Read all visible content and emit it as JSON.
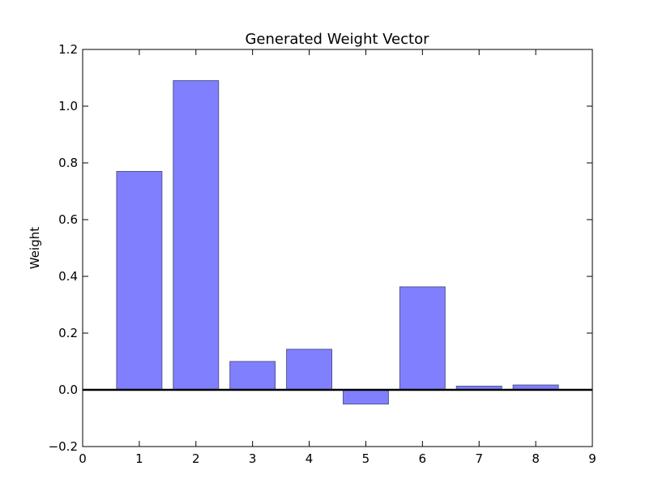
{
  "chart_data": {
    "type": "bar",
    "title": "Generated Weight Vector",
    "xlabel": "",
    "ylabel": "Weight",
    "x": [
      1,
      2,
      3,
      4,
      5,
      6,
      7,
      8
    ],
    "values": [
      0.77,
      1.09,
      0.1,
      0.143,
      -0.05,
      0.363,
      0.013,
      0.017
    ],
    "xlim": [
      0,
      9
    ],
    "ylim": [
      -0.2,
      1.2
    ],
    "xticks": [
      "0",
      "1",
      "2",
      "3",
      "4",
      "5",
      "6",
      "7",
      "8",
      "9"
    ],
    "yticks": [
      "−0.2",
      "0.0",
      "0.2",
      "0.4",
      "0.6",
      "0.8",
      "1.0",
      "1.2"
    ],
    "bar_color": "#8080ff",
    "bar_edge_color": "#55558f",
    "grid": false,
    "zero_line": true
  }
}
